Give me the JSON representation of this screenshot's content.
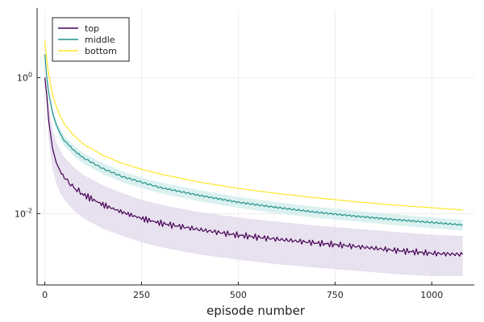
{
  "chart_data": {
    "type": "line",
    "title": "",
    "xlabel": "episode number",
    "ylabel": "",
    "xlim": [
      -20,
      1110
    ],
    "ylim_log10": [
      -3.05,
      1.0
    ],
    "yscale": "log",
    "grid": true,
    "legend": "top-left",
    "x_ticks": [
      {
        "value": 0,
        "label": "0"
      },
      {
        "value": 250,
        "label": "250"
      },
      {
        "value": 500,
        "label": "500"
      },
      {
        "value": 750,
        "label": "750"
      },
      {
        "value": 1000,
        "label": "1000"
      }
    ],
    "y_ticks": [
      {
        "value": 1,
        "base": "10",
        "exp": "0"
      },
      {
        "value": 0.01,
        "base": "10",
        "exp": "-2"
      }
    ],
    "x": [
      0,
      5,
      10,
      20,
      30,
      40,
      50,
      75,
      100,
      150,
      200,
      250,
      300,
      400,
      500,
      600,
      700,
      800,
      900,
      1000,
      1080
    ],
    "series": [
      {
        "name": "top",
        "color": "#440154",
        "band_color": "#e4dcec",
        "values": [
          1.0,
          0.55,
          0.23,
          0.09,
          0.055,
          0.042,
          0.034,
          0.024,
          0.019,
          0.0135,
          0.0105,
          0.0085,
          0.0072,
          0.0058,
          0.0048,
          0.0042,
          0.0037,
          0.0033,
          0.0029,
          0.0026,
          0.0025
        ],
        "lower": [
          0.85,
          0.35,
          0.12,
          0.045,
          0.027,
          0.02,
          0.016,
          0.011,
          0.0085,
          0.006,
          0.0047,
          0.0038,
          0.0032,
          0.0025,
          0.0021,
          0.0018,
          0.0016,
          0.00145,
          0.0013,
          0.0012,
          0.0012
        ],
        "upper": [
          1.2,
          0.8,
          0.4,
          0.17,
          0.11,
          0.085,
          0.068,
          0.048,
          0.037,
          0.026,
          0.02,
          0.016,
          0.0135,
          0.0105,
          0.0088,
          0.0076,
          0.0067,
          0.006,
          0.0054,
          0.0049,
          0.0047
        ]
      },
      {
        "name": "middle",
        "color": "#21908d",
        "band_color": "#d4eeed",
        "values": [
          2.2,
          1.0,
          0.6,
          0.3,
          0.2,
          0.15,
          0.12,
          0.085,
          0.066,
          0.046,
          0.035,
          0.029,
          0.024,
          0.0185,
          0.0147,
          0.0123,
          0.0105,
          0.0092,
          0.0082,
          0.0074,
          0.0068
        ],
        "lower": [
          2.0,
          0.9,
          0.53,
          0.26,
          0.17,
          0.125,
          0.1,
          0.07,
          0.054,
          0.038,
          0.029,
          0.0238,
          0.0198,
          0.0151,
          0.0121,
          0.0101,
          0.0087,
          0.0077,
          0.0068,
          0.0061,
          0.0056
        ],
        "upper": [
          2.4,
          1.1,
          0.67,
          0.34,
          0.23,
          0.175,
          0.14,
          0.1,
          0.078,
          0.055,
          0.042,
          0.034,
          0.0286,
          0.022,
          0.0176,
          0.0147,
          0.0126,
          0.011,
          0.0098,
          0.0088,
          0.0081
        ]
      },
      {
        "name": "bottom",
        "color": "#fde725",
        "values": [
          3.5,
          1.8,
          1.1,
          0.55,
          0.37,
          0.27,
          0.21,
          0.14,
          0.105,
          0.072,
          0.055,
          0.045,
          0.038,
          0.029,
          0.0235,
          0.0198,
          0.0171,
          0.015,
          0.0134,
          0.0122,
          0.0113
        ]
      }
    ]
  }
}
